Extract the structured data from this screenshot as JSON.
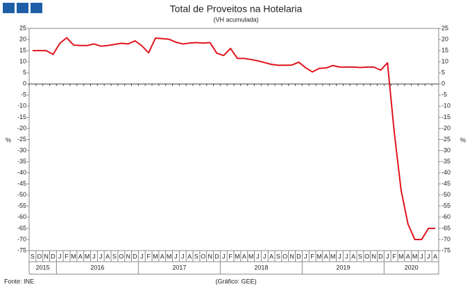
{
  "chart_data": {
    "type": "line",
    "title": "Total de Proveitos na Hotelaria",
    "subtitle": "(VH acumulada)",
    "y_label": "%",
    "y2_label": "%",
    "source": "Fonte: INE",
    "credit": "(Gráfico: GEE)",
    "groups": [
      {
        "label": "2015",
        "categories": [
          "S",
          "O",
          "N",
          "D"
        ]
      },
      {
        "label": "2016",
        "categories": [
          "J",
          "F",
          "M",
          "A",
          "M",
          "J",
          "J",
          "A",
          "S",
          "O",
          "N",
          "D"
        ]
      },
      {
        "label": "2017",
        "categories": [
          "J",
          "F",
          "M",
          "A",
          "M",
          "J",
          "J",
          "A",
          "S",
          "O",
          "N",
          "D"
        ]
      },
      {
        "label": "2018",
        "categories": [
          "J",
          "F",
          "M",
          "A",
          "M",
          "J",
          "J",
          "A",
          "S",
          "O",
          "N",
          "D"
        ]
      },
      {
        "label": "2019",
        "categories": [
          "J",
          "F",
          "M",
          "A",
          "M",
          "J",
          "J",
          "A",
          "S",
          "O",
          "N",
          "D"
        ]
      },
      {
        "label": "2020",
        "categories": [
          "J",
          "F",
          "M",
          "A",
          "M",
          "J",
          "J",
          "A"
        ]
      }
    ],
    "series": [
      {
        "color": "#e0141c",
        "values": [
          15,
          15,
          15,
          13.3,
          18.3,
          20.8,
          17.5,
          17.3,
          17.3,
          18,
          17,
          17.3,
          17.8,
          18.3,
          18,
          19.4,
          17.2,
          14,
          20.6,
          20.4,
          20.1,
          18.8,
          18,
          18.4,
          18.6,
          18.4,
          18.6,
          13.8,
          12.8,
          16,
          11.5,
          11.5,
          11,
          10.4,
          9.6,
          8.8,
          8.4,
          8.4,
          8.5,
          9.8,
          7.3,
          5.4,
          7,
          7.2,
          8.3,
          7.6,
          7.6,
          7.6,
          7.4,
          7.6,
          7.6,
          6.2,
          9.5,
          -22,
          -48,
          -63,
          -70,
          -70,
          -65,
          -65
        ]
      }
    ],
    "ylim": [
      -75,
      25
    ],
    "yticks": [
      25,
      20,
      15,
      10,
      5,
      0,
      -5,
      -10,
      -15,
      -20,
      -25,
      -30,
      -35,
      -40,
      -45,
      -50,
      -55,
      -60,
      -65,
      -70,
      -75
    ],
    "y2lim": [
      -75,
      25
    ],
    "y2ticks": [
      25,
      20,
      15,
      10,
      5,
      0,
      -5,
      -10,
      -15,
      -20,
      -25,
      -30,
      -35,
      -40,
      -45,
      -50,
      -55,
      -60,
      -65,
      -70,
      -75
    ]
  }
}
